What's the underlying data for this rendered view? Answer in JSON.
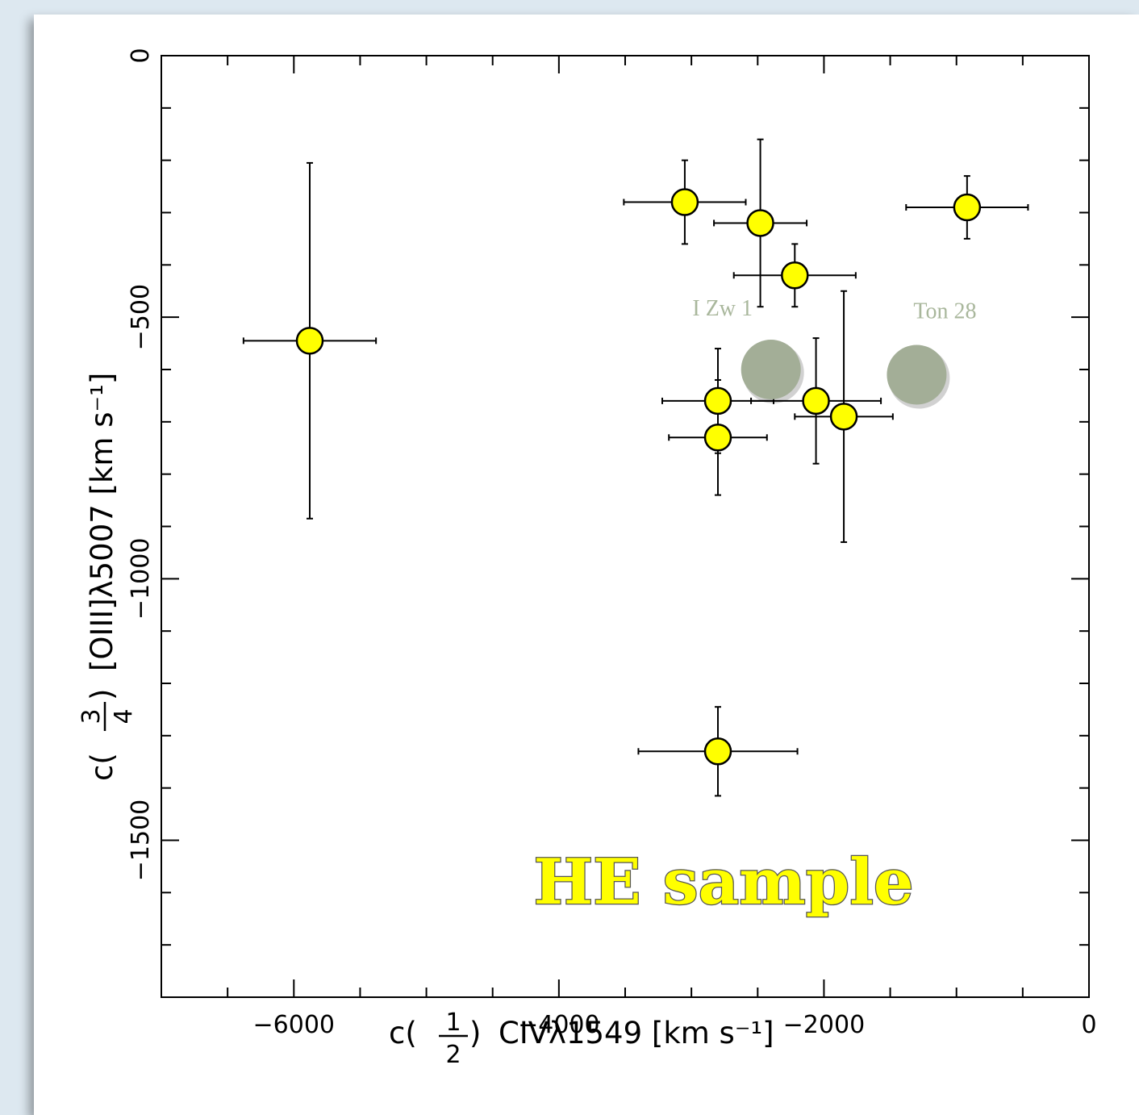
{
  "chart_data": {
    "type": "scatter",
    "xlabel_parts": {
      "c": "c(",
      "num": "1",
      "den": "2",
      "close": ")",
      "rest": "CIVλ1549 [km s⁻¹]"
    },
    "ylabel_parts": {
      "c": "c(",
      "num": "3",
      "den": "4",
      "close": ")",
      "rest": "[OIII]λ5007 [km s⁻¹]"
    },
    "xlim": [
      -7000,
      0
    ],
    "ylim": [
      -1800,
      0
    ],
    "x_ticks": [
      -6000,
      -4000,
      -2000,
      0
    ],
    "x_tick_labels": [
      "−6000",
      "−4000",
      "−2000",
      "0"
    ],
    "y_ticks": [
      0,
      -500,
      -1000,
      -1500
    ],
    "y_tick_labels": [
      "0",
      "−500",
      "−1000",
      "−1500"
    ],
    "x_minor_step": 500,
    "y_minor_step": 100,
    "grid": false,
    "series": [
      {
        "marker_color": "#ffff00",
        "points": [
          {
            "x": -5880,
            "y": -545,
            "xerr": 500,
            "yerr_up": 340,
            "yerr_down": 340
          },
          {
            "x": -3050,
            "y": -280,
            "xerr": 460,
            "yerr_up": 80,
            "yerr_down": 80
          },
          {
            "x": -2480,
            "y": -320,
            "xerr": 350,
            "yerr_up": 160,
            "yerr_down": 160
          },
          {
            "x": -2220,
            "y": -420,
            "xerr": 460,
            "yerr_up": 60,
            "yerr_down": 60
          },
          {
            "x": -920,
            "y": -290,
            "xerr": 460,
            "yerr_up": 60,
            "yerr_down": 60
          },
          {
            "x": -2800,
            "y": -660,
            "xerr": 420,
            "yerr_up": 100,
            "yerr_down": 100
          },
          {
            "x": -2800,
            "y": -730,
            "xerr": 370,
            "yerr_up": 110,
            "yerr_down": 110
          },
          {
            "x": -2060,
            "y": -660,
            "xerr": 490,
            "yerr_up": 120,
            "yerr_down": 120
          },
          {
            "x": -1850,
            "y": -690,
            "xerr": 370,
            "yerr_up": 240,
            "yerr_down": 240
          },
          {
            "x": -2800,
            "y": -1330,
            "xerr": 600,
            "yerr_up": 85,
            "yerr_down": 85
          }
        ]
      },
      {
        "marker_color": "#a3ae97",
        "points": [
          {
            "x": -2400,
            "y": -600,
            "label": "I Zw 1"
          },
          {
            "x": -1300,
            "y": -610,
            "label": "Ton 28"
          }
        ]
      }
    ],
    "annotation": "HE sample"
  },
  "colors": {
    "background": "#dde8f0",
    "card": "#ffffff",
    "marker_fill": "#ffff00",
    "ref_fill": "#a3ae97",
    "ref_label": "#a9b79c",
    "annotation_fill": "#ffff00",
    "annotation_stroke": "#555555"
  }
}
